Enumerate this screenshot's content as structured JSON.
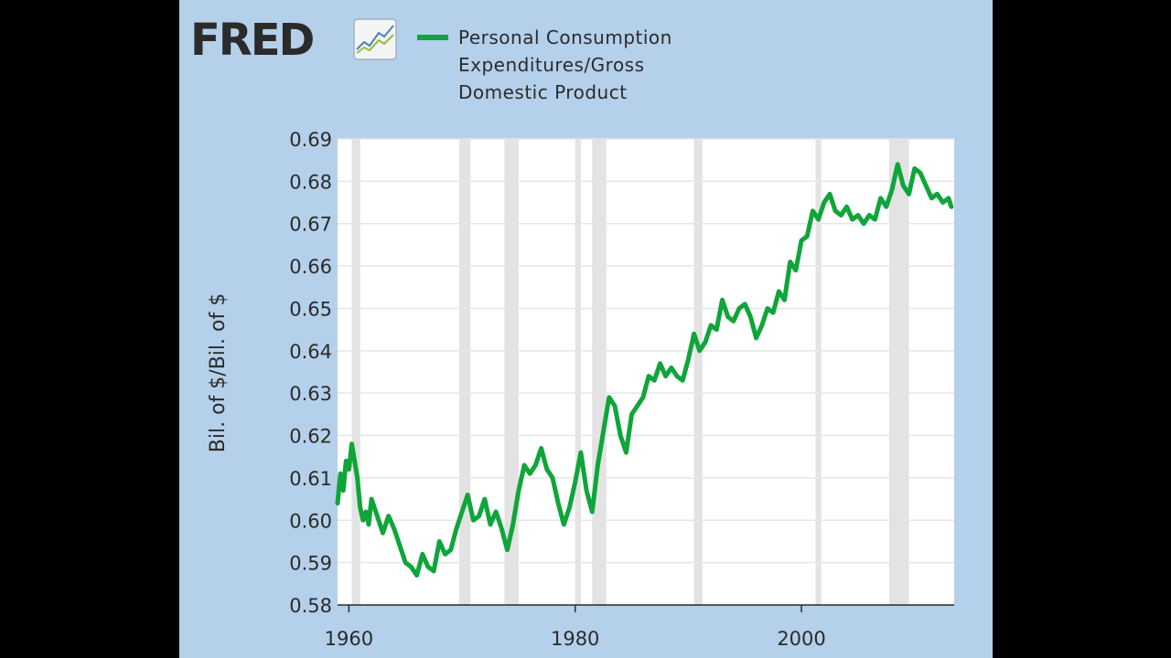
{
  "brand": {
    "name": "FRED",
    "logo_icon": "trend-chart-icon"
  },
  "colors": {
    "panel_bg": "#b4d0ea",
    "plot_bg": "#ffffff",
    "line": "#0fa53a",
    "recession": "#e3e3e3",
    "text": "#2b2b2b"
  },
  "chart_data": {
    "type": "line",
    "title": "",
    "xlabel": "",
    "ylabel": "Bil. of $/Bil. of $",
    "xlim": [
      1959,
      2013.5
    ],
    "ylim": [
      0.58,
      0.69
    ],
    "x_ticks": [
      1960,
      1980,
      2000
    ],
    "x_tick_labels": [
      "1960",
      "1980",
      "2000"
    ],
    "y_ticks": [
      0.58,
      0.59,
      0.6,
      0.61,
      0.62,
      0.63,
      0.64,
      0.65,
      0.66,
      0.67,
      0.68,
      0.69
    ],
    "y_tick_labels": [
      "0.58",
      "0.59",
      "0.60",
      "0.61",
      "0.62",
      "0.63",
      "0.64",
      "0.65",
      "0.66",
      "0.67",
      "0.68",
      "0.69"
    ],
    "grid": true,
    "legend": {
      "placement": "top",
      "entries": [
        "Personal Consumption Expenditures/Gross Domestic Product"
      ]
    },
    "recessions": [
      [
        1960.25,
        1961.0
      ],
      [
        1969.75,
        1970.75
      ],
      [
        1973.75,
        1975.0
      ],
      [
        1980.0,
        1980.5
      ],
      [
        1981.5,
        1982.75
      ],
      [
        1990.5,
        1991.25
      ],
      [
        2001.25,
        2001.75
      ],
      [
        2007.75,
        2009.5
      ]
    ],
    "series": [
      {
        "name": "Personal Consumption Expenditures/Gross Domestic Product",
        "x": [
          1959.0,
          1959.25,
          1959.5,
          1959.75,
          1960.0,
          1960.25,
          1960.5,
          1960.75,
          1961.0,
          1961.25,
          1961.5,
          1961.75,
          1962.0,
          1962.5,
          1963.0,
          1963.5,
          1964.0,
          1964.5,
          1965.0,
          1965.5,
          1966.0,
          1966.5,
          1967.0,
          1967.5,
          1968.0,
          1968.5,
          1969.0,
          1969.5,
          1970.0,
          1970.5,
          1971.0,
          1971.5,
          1972.0,
          1972.5,
          1973.0,
          1973.5,
          1974.0,
          1974.5,
          1975.0,
          1975.5,
          1976.0,
          1976.5,
          1977.0,
          1977.5,
          1978.0,
          1978.5,
          1979.0,
          1979.5,
          1980.0,
          1980.5,
          1981.0,
          1981.5,
          1982.0,
          1982.5,
          1983.0,
          1983.5,
          1984.0,
          1984.5,
          1985.0,
          1985.5,
          1986.0,
          1986.5,
          1987.0,
          1987.5,
          1988.0,
          1988.5,
          1989.0,
          1989.5,
          1990.0,
          1990.5,
          1991.0,
          1991.5,
          1992.0,
          1992.5,
          1993.0,
          1993.5,
          1994.0,
          1994.5,
          1995.0,
          1995.5,
          1996.0,
          1996.5,
          1997.0,
          1997.5,
          1998.0,
          1998.5,
          1999.0,
          1999.5,
          2000.0,
          2000.5,
          2001.0,
          2001.5,
          2002.0,
          2002.5,
          2003.0,
          2003.5,
          2004.0,
          2004.5,
          2005.0,
          2005.5,
          2006.0,
          2006.5,
          2007.0,
          2007.5,
          2008.0,
          2008.5,
          2009.0,
          2009.5,
          2010.0,
          2010.5,
          2011.0,
          2011.5,
          2012.0,
          2012.5,
          2013.0,
          2013.25
        ],
        "values": [
          0.604,
          0.611,
          0.607,
          0.614,
          0.612,
          0.618,
          0.614,
          0.61,
          0.603,
          0.6,
          0.602,
          0.599,
          0.605,
          0.601,
          0.597,
          0.601,
          0.598,
          0.594,
          0.59,
          0.589,
          0.587,
          0.592,
          0.589,
          0.588,
          0.595,
          0.592,
          0.593,
          0.598,
          0.602,
          0.606,
          0.6,
          0.601,
          0.605,
          0.599,
          0.602,
          0.598,
          0.593,
          0.599,
          0.607,
          0.613,
          0.611,
          0.613,
          0.617,
          0.612,
          0.61,
          0.604,
          0.599,
          0.603,
          0.609,
          0.616,
          0.607,
          0.602,
          0.613,
          0.621,
          0.629,
          0.627,
          0.62,
          0.616,
          0.625,
          0.627,
          0.629,
          0.634,
          0.633,
          0.637,
          0.634,
          0.636,
          0.634,
          0.633,
          0.638,
          0.644,
          0.64,
          0.642,
          0.646,
          0.645,
          0.652,
          0.648,
          0.647,
          0.65,
          0.651,
          0.648,
          0.643,
          0.646,
          0.65,
          0.649,
          0.654,
          0.652,
          0.661,
          0.659,
          0.666,
          0.667,
          0.673,
          0.671,
          0.675,
          0.677,
          0.673,
          0.672,
          0.674,
          0.671,
          0.672,
          0.67,
          0.672,
          0.671,
          0.676,
          0.674,
          0.678,
          0.684,
          0.679,
          0.677,
          0.683,
          0.682,
          0.679,
          0.676,
          0.677,
          0.675,
          0.676,
          0.674
        ]
      }
    ]
  }
}
